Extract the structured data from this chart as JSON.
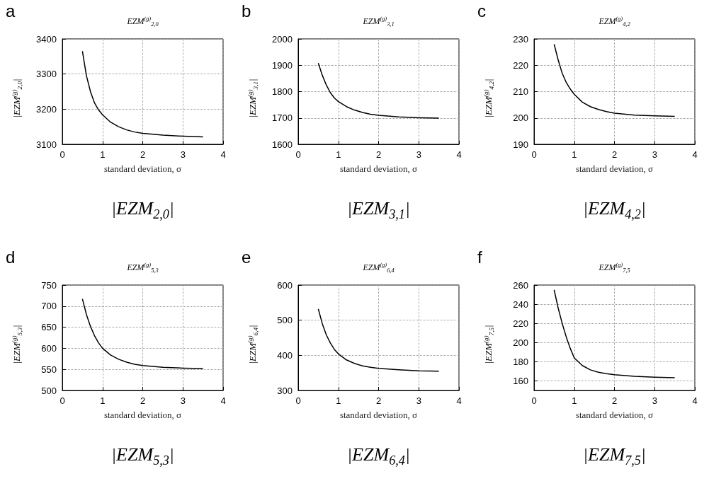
{
  "chart_data": [
    {
      "type": "line",
      "title": "EZM$^{(g)}$$_{2,0}$",
      "xlabel": "standard deviation, σ",
      "ylabel": "|EZM$^{(g)}$$_{2,0}$|",
      "annotations": [
        "a",
        "|EZM$_{2,0}$|"
      ],
      "xlim": [
        0,
        4
      ],
      "xticks": [
        0,
        1,
        2,
        3,
        4
      ],
      "ylim": [
        3100,
        3400
      ],
      "yticks": [
        3100,
        3200,
        3300,
        3400
      ],
      "grid": true,
      "color": "#000000",
      "x": [
        0.5,
        0.55,
        0.6,
        0.7,
        0.8,
        0.9,
        1,
        1.2,
        1.4,
        1.6,
        1.8,
        2,
        2.5,
        3,
        3.5
      ],
      "values": [
        3365,
        3330,
        3295,
        3250,
        3218,
        3198,
        3184,
        3163,
        3150,
        3141,
        3135,
        3131,
        3126,
        3123,
        3121
      ]
    },
    {
      "type": "line",
      "title": "EZM$^{(g)}$$_{3,1}$",
      "xlabel": "standard deviation, σ",
      "ylabel": "|EZM$^{(g)}$$_{3,1}$|",
      "annotations": [
        "b",
        "|EZM$_{3,1}$|"
      ],
      "xlim": [
        0,
        4
      ],
      "xticks": [
        0,
        1,
        2,
        3,
        4
      ],
      "ylim": [
        1600,
        2000
      ],
      "yticks": [
        1600,
        1700,
        1800,
        1900,
        2000
      ],
      "grid": true,
      "color": "#000000",
      "x": [
        0.5,
        0.6,
        0.7,
        0.8,
        0.9,
        1,
        1.2,
        1.4,
        1.6,
        1.8,
        2,
        2.5,
        3,
        3.5
      ],
      "values": [
        1908,
        1862,
        1825,
        1796,
        1776,
        1762,
        1743,
        1730,
        1721,
        1714,
        1710,
        1704,
        1701,
        1699
      ]
    },
    {
      "type": "line",
      "title": "EZM$^{(g)}$$_{4,2}$",
      "xlabel": "standard deviation, σ",
      "ylabel": "|EZM$^{(g)}$$_{4,2}$|",
      "annotations": [
        "c",
        "|EZM$_{4,2}$|"
      ],
      "xlim": [
        0,
        4
      ],
      "xticks": [
        0,
        1,
        2,
        3,
        4
      ],
      "ylim": [
        190,
        230
      ],
      "yticks": [
        190,
        200,
        210,
        220,
        230
      ],
      "grid": true,
      "color": "#000000",
      "x": [
        0.5,
        0.6,
        0.7,
        0.8,
        0.9,
        1,
        1.2,
        1.4,
        1.6,
        1.8,
        2,
        2.5,
        3,
        3.5
      ],
      "values": [
        228,
        222,
        217,
        213.5,
        211,
        209,
        206,
        204.3,
        203.2,
        202.4,
        201.8,
        201.1,
        200.8,
        200.6
      ]
    },
    {
      "type": "line",
      "title": "EZM$^{(g)}$$_{5,3}$",
      "xlabel": "standard deviation, σ",
      "ylabel": "|EZM$^{(g)}$$_{5,3}$|",
      "annotations": [
        "d",
        "|EZM$_{5,3}$|"
      ],
      "xlim": [
        0,
        4
      ],
      "xticks": [
        0,
        1,
        2,
        3,
        4
      ],
      "ylim": [
        500,
        750
      ],
      "yticks": [
        500,
        550,
        600,
        650,
        700,
        750
      ],
      "grid": true,
      "color": "#000000",
      "x": [
        0.5,
        0.6,
        0.7,
        0.8,
        0.9,
        1,
        1.2,
        1.4,
        1.6,
        1.8,
        2,
        2.5,
        3,
        3.5
      ],
      "values": [
        717,
        680,
        652,
        630,
        613,
        600,
        584,
        574,
        567,
        562,
        559,
        555,
        553,
        552
      ]
    },
    {
      "type": "line",
      "title": "EZM$^{(g)}$$_{6,4}$",
      "xlabel": "standard deviation, σ",
      "ylabel": "|EZM$^{(g)}$$_{6,4}$|",
      "annotations": [
        "e",
        "|EZM$_{6,4}$|"
      ],
      "xlim": [
        0,
        4
      ],
      "xticks": [
        0,
        1,
        2,
        3,
        4
      ],
      "ylim": [
        300,
        600
      ],
      "yticks": [
        300,
        400,
        500,
        600
      ],
      "grid": true,
      "color": "#000000",
      "x": [
        0.5,
        0.6,
        0.7,
        0.8,
        0.9,
        1,
        1.2,
        1.4,
        1.6,
        1.8,
        2,
        2.5,
        3,
        3.5
      ],
      "values": [
        532,
        490,
        458,
        435,
        417,
        404,
        387,
        377,
        370,
        366,
        363,
        359,
        356,
        355
      ]
    },
    {
      "type": "line",
      "title": "EZM$^{(g)}$$_{7,5}$",
      "xlabel": "standard deviation, σ",
      "ylabel": "|EZM$^{(g)}$$_{7,5}$|",
      "annotations": [
        "f",
        "|EZM$_{7,5}$|"
      ],
      "xlim": [
        0,
        4
      ],
      "xticks": [
        0,
        1,
        2,
        3,
        4
      ],
      "ylim": [
        150,
        260
      ],
      "yticks": [
        160,
        180,
        200,
        220,
        240,
        260
      ],
      "grid": true,
      "color": "#000000",
      "x": [
        0.5,
        0.6,
        0.7,
        0.8,
        0.9,
        1,
        1.2,
        1.4,
        1.6,
        1.8,
        2,
        2.5,
        3,
        3.5
      ],
      "values": [
        255,
        236,
        220,
        206,
        194,
        184,
        176,
        171.5,
        169,
        167.5,
        166.5,
        164.8,
        163.8,
        163.2
      ]
    }
  ]
}
